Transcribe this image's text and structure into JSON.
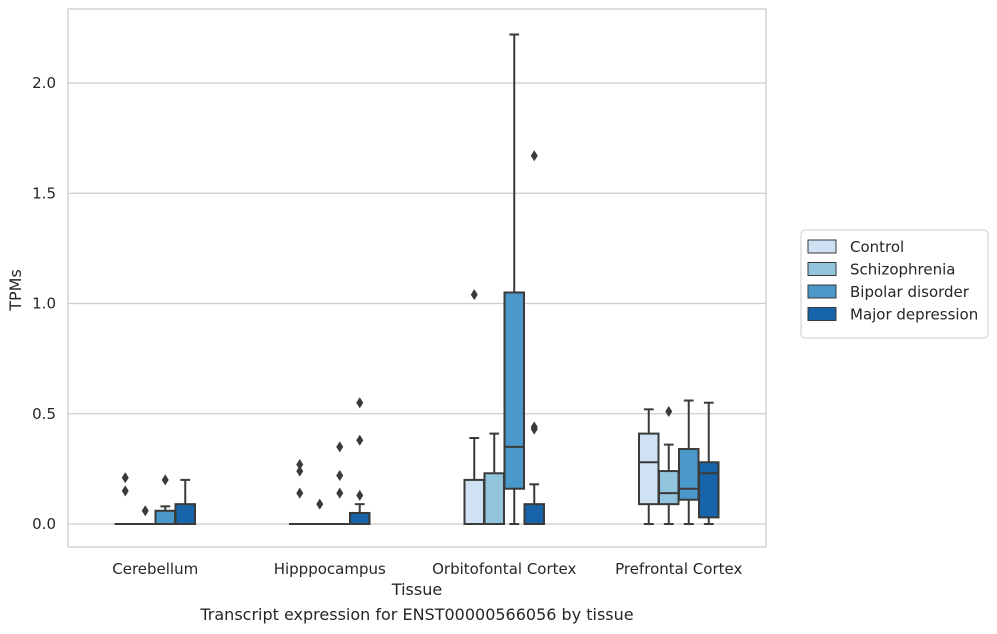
{
  "caption": "Transcript expression for ENST00000566056 by tissue",
  "chart_data": {
    "type": "box",
    "xlabel": "Tissue",
    "ylabel": "TPMs",
    "ylim": [
      -0.1,
      2.35
    ],
    "yticks": [
      0.0,
      0.5,
      1.0,
      1.5,
      2.0
    ],
    "ytick_labels": [
      "0.0",
      "0.5",
      "1.0",
      "1.5",
      "2.0"
    ],
    "grid": "horizontal",
    "legend_position": "right",
    "categories": [
      "Cerebellum",
      "Hipppocampus",
      "Orbitofontal Cortex",
      "Prefrontal Cortex"
    ],
    "series": [
      {
        "name": "Control",
        "color": "#cfe1f2",
        "boxes": [
          {
            "q1": 0,
            "med": 0,
            "q3": 0,
            "whislo": 0,
            "whishi": 0,
            "fliers": [
              0.21,
              0.15
            ]
          },
          {
            "q1": 0,
            "med": 0,
            "q3": 0,
            "whislo": 0,
            "whishi": 0,
            "fliers": [
              0.27,
              0.24,
              0.14
            ]
          },
          {
            "q1": 0,
            "med": 0,
            "q3": 0.2,
            "whislo": 0,
            "whishi": 0.39,
            "fliers": [
              1.04
            ]
          },
          {
            "q1": 0.09,
            "med": 0.28,
            "q3": 0.41,
            "whislo": 0,
            "whishi": 0.52,
            "fliers": []
          }
        ]
      },
      {
        "name": "Schizophrenia",
        "color": "#93c4de",
        "boxes": [
          {
            "q1": 0,
            "med": 0,
            "q3": 0,
            "whislo": 0,
            "whishi": 0,
            "fliers": [
              0.06
            ]
          },
          {
            "q1": 0,
            "med": 0,
            "q3": 0,
            "whislo": 0,
            "whishi": 0,
            "fliers": [
              0.09
            ]
          },
          {
            "q1": 0,
            "med": 0,
            "q3": 0.23,
            "whislo": 0,
            "whishi": 0.41,
            "fliers": []
          },
          {
            "q1": 0.09,
            "med": 0.14,
            "q3": 0.24,
            "whislo": 0,
            "whishi": 0.36,
            "fliers": [
              0.51
            ]
          }
        ]
      },
      {
        "name": "Bipolar disorder",
        "color": "#4a98c9",
        "boxes": [
          {
            "q1": 0,
            "med": 0,
            "q3": 0.06,
            "whislo": 0,
            "whishi": 0.08,
            "fliers": [
              0.2
            ]
          },
          {
            "q1": 0,
            "med": 0,
            "q3": 0,
            "whislo": 0,
            "whishi": 0,
            "fliers": [
              0.35,
              0.22,
              0.14
            ]
          },
          {
            "q1": 0.16,
            "med": 0.35,
            "q3": 1.05,
            "whislo": 0,
            "whishi": 2.22,
            "fliers": []
          },
          {
            "q1": 0.11,
            "med": 0.16,
            "q3": 0.34,
            "whislo": 0,
            "whishi": 0.56,
            "fliers": []
          }
        ]
      },
      {
        "name": "Major depression",
        "color": "#1764ab",
        "boxes": [
          {
            "q1": 0,
            "med": 0,
            "q3": 0.09,
            "whislo": 0,
            "whishi": 0.2,
            "fliers": []
          },
          {
            "q1": 0,
            "med": 0,
            "q3": 0.05,
            "whislo": 0,
            "whishi": 0.09,
            "fliers": [
              0.55,
              0.38,
              0.13
            ]
          },
          {
            "q1": 0,
            "med": 0,
            "q3": 0.09,
            "whislo": 0,
            "whishi": 0.18,
            "fliers": [
              1.67,
              0.44,
              0.43
            ]
          },
          {
            "q1": 0.03,
            "med": 0.23,
            "q3": 0.28,
            "whislo": 0,
            "whishi": 0.55,
            "fliers": []
          }
        ]
      }
    ]
  }
}
